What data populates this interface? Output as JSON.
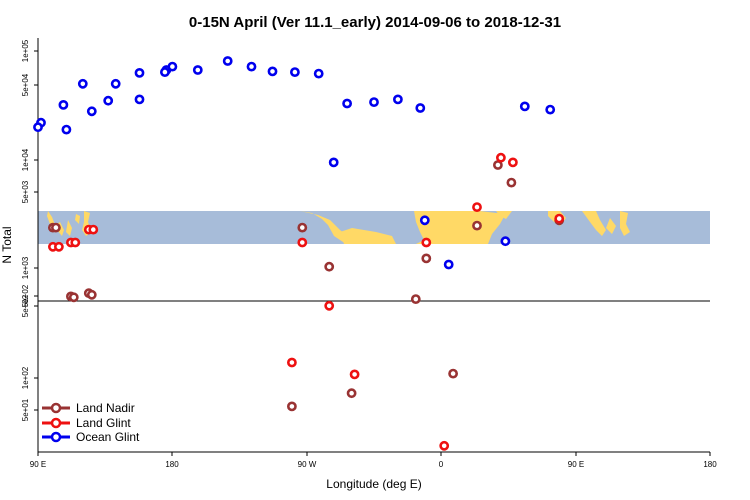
{
  "chart_data": {
    "type": "scatter",
    "title": "0-15N April (Ver 11.1_early)   2014-09-06 to 2018-12-31",
    "xlabel": "Longitude (deg E)",
    "ylabel": "N Total",
    "x_ticks": [
      "90 E",
      "180",
      "90 W",
      "0",
      "90 E",
      "180"
    ],
    "y_ticks": [
      "1e+05",
      "5e+04",
      "1e+04",
      "5e+03",
      "1e+03",
      "5e+02",
      "5e+02",
      "1e+02",
      "5e+01"
    ],
    "y_scale": "log",
    "map_strip": "world map, latitude band 0-15N",
    "legend_position": "bottom-left",
    "colors": {
      "land_nadir": "#993333",
      "land_glint": "#ee1111",
      "ocean_glint": "#0000ee",
      "ocean": "#a7bcd9",
      "land": "#ffd966"
    },
    "series": [
      {
        "name": "Land Nadir",
        "color": "#993333",
        "points": [
          {
            "x": 100,
            "y": 2400
          },
          {
            "x": 112,
            "y": 560
          },
          {
            "x": 124,
            "y": 600
          },
          {
            "x": -93,
            "y": 2400
          },
          {
            "x": -75,
            "y": 1050
          },
          {
            "x": -17,
            "y": 530
          },
          {
            "x": -10,
            "y": 1250
          },
          {
            "x": 24,
            "y": 2500
          },
          {
            "x": 38,
            "y": 9000
          },
          {
            "x": 47,
            "y": 6200
          },
          {
            "x": 79,
            "y": 2800
          },
          {
            "x": 102,
            "y": 2400
          },
          {
            "x": 114,
            "y": 550
          },
          {
            "x": 126,
            "y": 580
          },
          {
            "x": -100,
            "y": 54
          },
          {
            "x": -60,
            "y": 72
          },
          {
            "x": 8,
            "y": 110
          }
        ]
      },
      {
        "name": "Land Glint",
        "color": "#ee1111",
        "points": [
          {
            "x": 100,
            "y": 1600
          },
          {
            "x": 112,
            "y": 1750
          },
          {
            "x": 124,
            "y": 2300
          },
          {
            "x": -93,
            "y": 1750
          },
          {
            "x": -75,
            "y": 460
          },
          {
            "x": -10,
            "y": 1750
          },
          {
            "x": 24,
            "y": 3700
          },
          {
            "x": 40,
            "y": 10500
          },
          {
            "x": 48,
            "y": 9500
          },
          {
            "x": 79,
            "y": 2900
          },
          {
            "x": 104,
            "y": 1600
          },
          {
            "x": 115,
            "y": 1750
          },
          {
            "x": 127,
            "y": 2300
          },
          {
            "x": -100,
            "y": 140
          },
          {
            "x": -58,
            "y": 108
          },
          {
            "x": 2,
            "y": 23
          }
        ]
      },
      {
        "name": "Ocean Glint",
        "color": "#0000ee",
        "points": [
          {
            "x": 92,
            "y": 22000
          },
          {
            "x": 107,
            "y": 32000
          },
          {
            "x": 120,
            "y": 50000
          },
          {
            "x": 137,
            "y": 35000
          },
          {
            "x": 158,
            "y": 63000
          },
          {
            "x": 176,
            "y": 67000
          },
          {
            "x": -163,
            "y": 67000
          },
          {
            "x": -143,
            "y": 81000
          },
          {
            "x": -127,
            "y": 72000
          },
          {
            "x": -113,
            "y": 65000
          },
          {
            "x": -98,
            "y": 64000
          },
          {
            "x": -82,
            "y": 62000
          },
          {
            "x": -63,
            "y": 33000
          },
          {
            "x": -45,
            "y": 34000
          },
          {
            "x": -29,
            "y": 36000
          },
          {
            "x": -14,
            "y": 30000
          },
          {
            "x": -72,
            "y": 9500
          },
          {
            "x": -11,
            "y": 2800
          },
          {
            "x": 5,
            "y": 1100
          },
          {
            "x": 43,
            "y": 1800
          },
          {
            "x": 56,
            "y": 31000
          },
          {
            "x": 73,
            "y": 29000
          },
          {
            "x": 90,
            "y": 20000
          },
          {
            "x": 109,
            "y": 19000
          },
          {
            "x": 126,
            "y": 28000
          },
          {
            "x": 142,
            "y": 50000
          },
          {
            "x": 158,
            "y": 36000
          },
          {
            "x": 175,
            "y": 64000
          },
          {
            "x": 180,
            "y": 72000
          }
        ]
      }
    ]
  }
}
